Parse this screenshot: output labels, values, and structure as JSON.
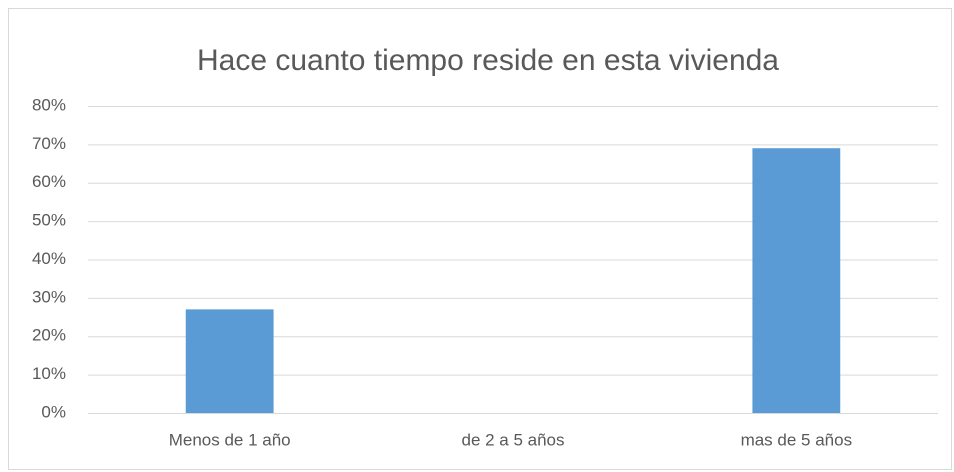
{
  "chart_data": {
    "type": "bar",
    "title": "Hace cuanto tiempo reside en esta vivienda",
    "categories": [
      "Menos de 1 año",
      "de 2 a 5 años",
      "mas de 5 años"
    ],
    "values": [
      27,
      0,
      69
    ],
    "color": "#5b9bd5",
    "ylim": [
      0,
      80
    ],
    "yticks": [
      {
        "value": 0,
        "label": "0%"
      },
      {
        "value": 10,
        "label": "10%"
      },
      {
        "value": 20,
        "label": "20%"
      },
      {
        "value": 30,
        "label": "30%"
      },
      {
        "value": 40,
        "label": "40%"
      },
      {
        "value": 50,
        "label": "50%"
      },
      {
        "value": 60,
        "label": "60%"
      },
      {
        "value": 70,
        "label": "70%"
      },
      {
        "value": 80,
        "label": "80%"
      }
    ],
    "grid": true
  }
}
